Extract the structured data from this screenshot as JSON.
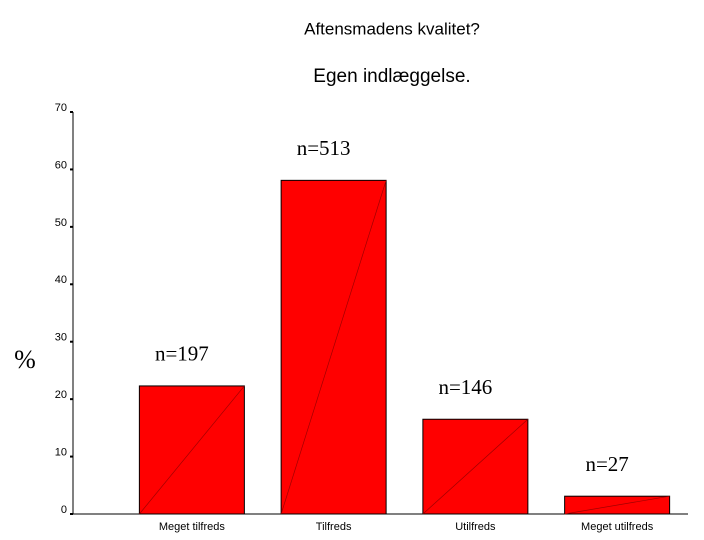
{
  "chart_data": {
    "type": "bar",
    "title": "Aftensmadens kvalitet?",
    "subtitle": "Egen indlæggelse.",
    "y_label": "%",
    "categories": [
      "Meget tilfreds",
      "Tilfreds",
      "Utilfreds",
      "Meget utilfreds"
    ],
    "values": [
      22.3,
      58.1,
      16.5,
      3.1
    ],
    "annotations": [
      "n=197",
      "n=513",
      "n=146",
      "n=27"
    ],
    "color": "#ff0000",
    "ylim": [
      0,
      70
    ],
    "yticks": [
      0,
      10,
      20,
      30,
      40,
      50,
      60,
      70
    ]
  }
}
